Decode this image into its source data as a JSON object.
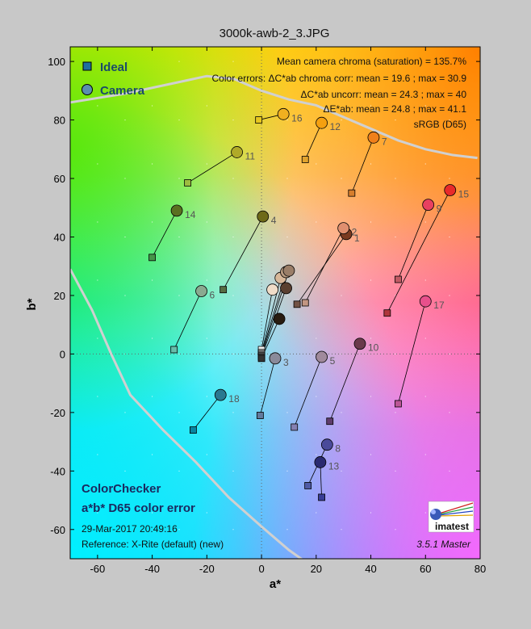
{
  "page_title": "3000k-awb-2_3.JPG",
  "chart_data": {
    "type": "scatter",
    "title": "3000k-awb-2_3.JPG",
    "xlabel": "a*",
    "ylabel": "b*",
    "xlim": [
      -70,
      80
    ],
    "ylim": [
      -70,
      105
    ],
    "xticks": [
      -60,
      -40,
      -20,
      0,
      20,
      40,
      60,
      80
    ],
    "yticks": [
      -60,
      -40,
      -20,
      0,
      20,
      40,
      60,
      80,
      100
    ],
    "grid": true,
    "legend_position": "top-left",
    "legend": [
      {
        "name": "Ideal",
        "marker": "square",
        "color": "#1f6fa0"
      },
      {
        "name": "Camera",
        "marker": "circle",
        "color": "#5a8fb0"
      }
    ],
    "stats": [
      "Mean camera chroma (saturation) = 135.7%",
      "Color errors: ΔC*ab chroma corr:  mean = 19.6 ;  max = 30.9",
      "ΔC*ab uncorr:  mean = 24.3 ;  max = 40",
      "ΔE*ab:  mean = 24.8 ;  max = 41.1",
      "sRGB (D65)"
    ],
    "info": [
      "ColorChecker",
      "a*b* D65 color error",
      "29-Mar-2017 20:49:16",
      "Reference: X-Rite (default) (new)"
    ],
    "version": "3.5.1  Master",
    "logo_text": "imatest",
    "series": [
      {
        "name": "Ideal",
        "points": [
          {
            "patch": 1,
            "x": 13,
            "y": 17,
            "color": "#735244"
          },
          {
            "patch": 2,
            "x": 16,
            "y": 17.5,
            "color": "#c29682"
          },
          {
            "patch": 3,
            "x": -0.5,
            "y": -21,
            "color": "#627a9d"
          },
          {
            "patch": 4,
            "x": -14,
            "y": 22,
            "color": "#576c43"
          },
          {
            "patch": 5,
            "x": 12,
            "y": -25,
            "color": "#8580b1"
          },
          {
            "patch": 6,
            "x": -32,
            "y": 1.5,
            "color": "#67bdaa"
          },
          {
            "patch": 7,
            "x": 33,
            "y": 55,
            "color": "#d67e2c"
          },
          {
            "patch": 8,
            "x": 17,
            "y": -45,
            "color": "#505ba6"
          },
          {
            "patch": 9,
            "x": 50,
            "y": 25.5,
            "color": "#c15a63"
          },
          {
            "patch": 10,
            "x": 25,
            "y": -23,
            "color": "#5e3c6c"
          },
          {
            "patch": 11,
            "x": -27,
            "y": 58.5,
            "color": "#9dbc40"
          },
          {
            "patch": 12,
            "x": 16,
            "y": 66.5,
            "color": "#e0a32e"
          },
          {
            "patch": 13,
            "x": 22,
            "y": -49,
            "color": "#383d96"
          },
          {
            "patch": 14,
            "x": -40,
            "y": 33,
            "color": "#469449"
          },
          {
            "patch": 15,
            "x": 46,
            "y": 14,
            "color": "#af363c"
          },
          {
            "patch": 16,
            "x": -1,
            "y": 80,
            "color": "#e7c71f"
          },
          {
            "patch": 17,
            "x": 50,
            "y": -17,
            "color": "#bb5695"
          },
          {
            "patch": 18,
            "x": -25,
            "y": -26,
            "color": "#0885a1"
          },
          {
            "patch": 19,
            "x": 0,
            "y": 1.5,
            "color": "#f3f3f2"
          },
          {
            "patch": 20,
            "x": 0,
            "y": 0.5,
            "color": "#c8c8c8"
          },
          {
            "patch": 21,
            "x": 0,
            "y": 0,
            "color": "#a0a0a0"
          },
          {
            "patch": 22,
            "x": 0,
            "y": -0.5,
            "color": "#7a7a79"
          },
          {
            "patch": 23,
            "x": 0,
            "y": -1,
            "color": "#555555"
          },
          {
            "patch": 24,
            "x": 0,
            "y": -1.5,
            "color": "#343434"
          }
        ]
      },
      {
        "name": "Camera",
        "points": [
          {
            "patch": 1,
            "x": 31,
            "y": 41,
            "color": "#7a3a20"
          },
          {
            "patch": 2,
            "x": 30,
            "y": 43,
            "color": "#e08f6f"
          },
          {
            "patch": 3,
            "x": 5,
            "y": -1.5,
            "color": "#8a8a9a"
          },
          {
            "patch": 4,
            "x": 0.5,
            "y": 47,
            "color": "#6e6a18"
          },
          {
            "patch": 5,
            "x": 22,
            "y": -1,
            "color": "#a08a9c"
          },
          {
            "patch": 6,
            "x": -22,
            "y": 21.5,
            "color": "#8aaa90"
          },
          {
            "patch": 7,
            "x": 41,
            "y": 74,
            "color": "#f0801a"
          },
          {
            "patch": 8,
            "x": 24,
            "y": -31,
            "color": "#4a4a9a"
          },
          {
            "patch": 9,
            "x": 61,
            "y": 51,
            "color": "#e84060"
          },
          {
            "patch": 10,
            "x": 36,
            "y": 3.5,
            "color": "#6a3a4a"
          },
          {
            "patch": 11,
            "x": -9,
            "y": 69,
            "color": "#b0aa28"
          },
          {
            "patch": 12,
            "x": 22,
            "y": 79,
            "color": "#f5a010"
          },
          {
            "patch": 13,
            "x": 21.5,
            "y": -37,
            "color": "#2a2a70"
          },
          {
            "patch": 14,
            "x": -31,
            "y": 49,
            "color": "#5a7020"
          },
          {
            "patch": 15,
            "x": 69,
            "y": 56,
            "color": "#e82a2a"
          },
          {
            "patch": 16,
            "x": 8,
            "y": 82,
            "color": "#f0b020"
          },
          {
            "patch": 17,
            "x": 60,
            "y": 18,
            "color": "#e8508c"
          },
          {
            "patch": 18,
            "x": -15,
            "y": -14,
            "color": "#2a7890"
          },
          {
            "patch": 19,
            "x": 4,
            "y": 22,
            "color": "#f0dcc8"
          },
          {
            "patch": 20,
            "x": 7,
            "y": 26,
            "color": "#d8b89a"
          },
          {
            "patch": 21,
            "x": 9,
            "y": 28,
            "color": "#b89a80"
          },
          {
            "patch": 22,
            "x": 10,
            "y": 28.5,
            "color": "#9a7e68"
          },
          {
            "patch": 23,
            "x": 9,
            "y": 22.5,
            "color": "#5a4030"
          },
          {
            "patch": 24,
            "x": 6.5,
            "y": 12,
            "color": "#281c10"
          }
        ]
      }
    ],
    "patch_labels": [
      {
        "text": "1",
        "patch": 1
      },
      {
        "text": "2",
        "patch": 2
      },
      {
        "text": "3",
        "patch": 3
      },
      {
        "text": "4",
        "patch": 4
      },
      {
        "text": "5",
        "patch": 5
      },
      {
        "text": "6",
        "patch": 6
      },
      {
        "text": "7",
        "patch": 7
      },
      {
        "text": "8",
        "patch": 8
      },
      {
        "text": "9",
        "patch": 9
      },
      {
        "text": "10",
        "patch": 10
      },
      {
        "text": "11",
        "patch": 11
      },
      {
        "text": "12",
        "patch": 12
      },
      {
        "text": "13",
        "patch": 13
      },
      {
        "text": "14",
        "patch": 14
      },
      {
        "text": "15",
        "patch": 15
      },
      {
        "text": "16",
        "patch": 16
      },
      {
        "text": "17",
        "patch": 17
      },
      {
        "text": "18",
        "patch": 18
      }
    ],
    "gamut_boundary": {
      "upper": [
        [
          -70,
          86
        ],
        [
          -50,
          89
        ],
        [
          -30,
          93
        ],
        [
          -20,
          95
        ],
        [
          -10,
          94
        ],
        [
          0,
          90
        ],
        [
          10,
          87
        ],
        [
          20,
          85
        ],
        [
          30,
          81
        ],
        [
          40,
          77
        ],
        [
          50,
          73
        ],
        [
          60,
          70
        ],
        [
          70,
          68
        ],
        [
          79,
          67
        ]
      ],
      "lower": [
        [
          -70,
          29
        ],
        [
          -62,
          15
        ],
        [
          -55,
          0
        ],
        [
          -48,
          -14
        ],
        [
          -36,
          -26
        ],
        [
          -24,
          -37
        ],
        [
          -12,
          -49
        ],
        [
          0,
          -59
        ],
        [
          10,
          -67
        ],
        [
          16,
          -71
        ]
      ]
    }
  }
}
